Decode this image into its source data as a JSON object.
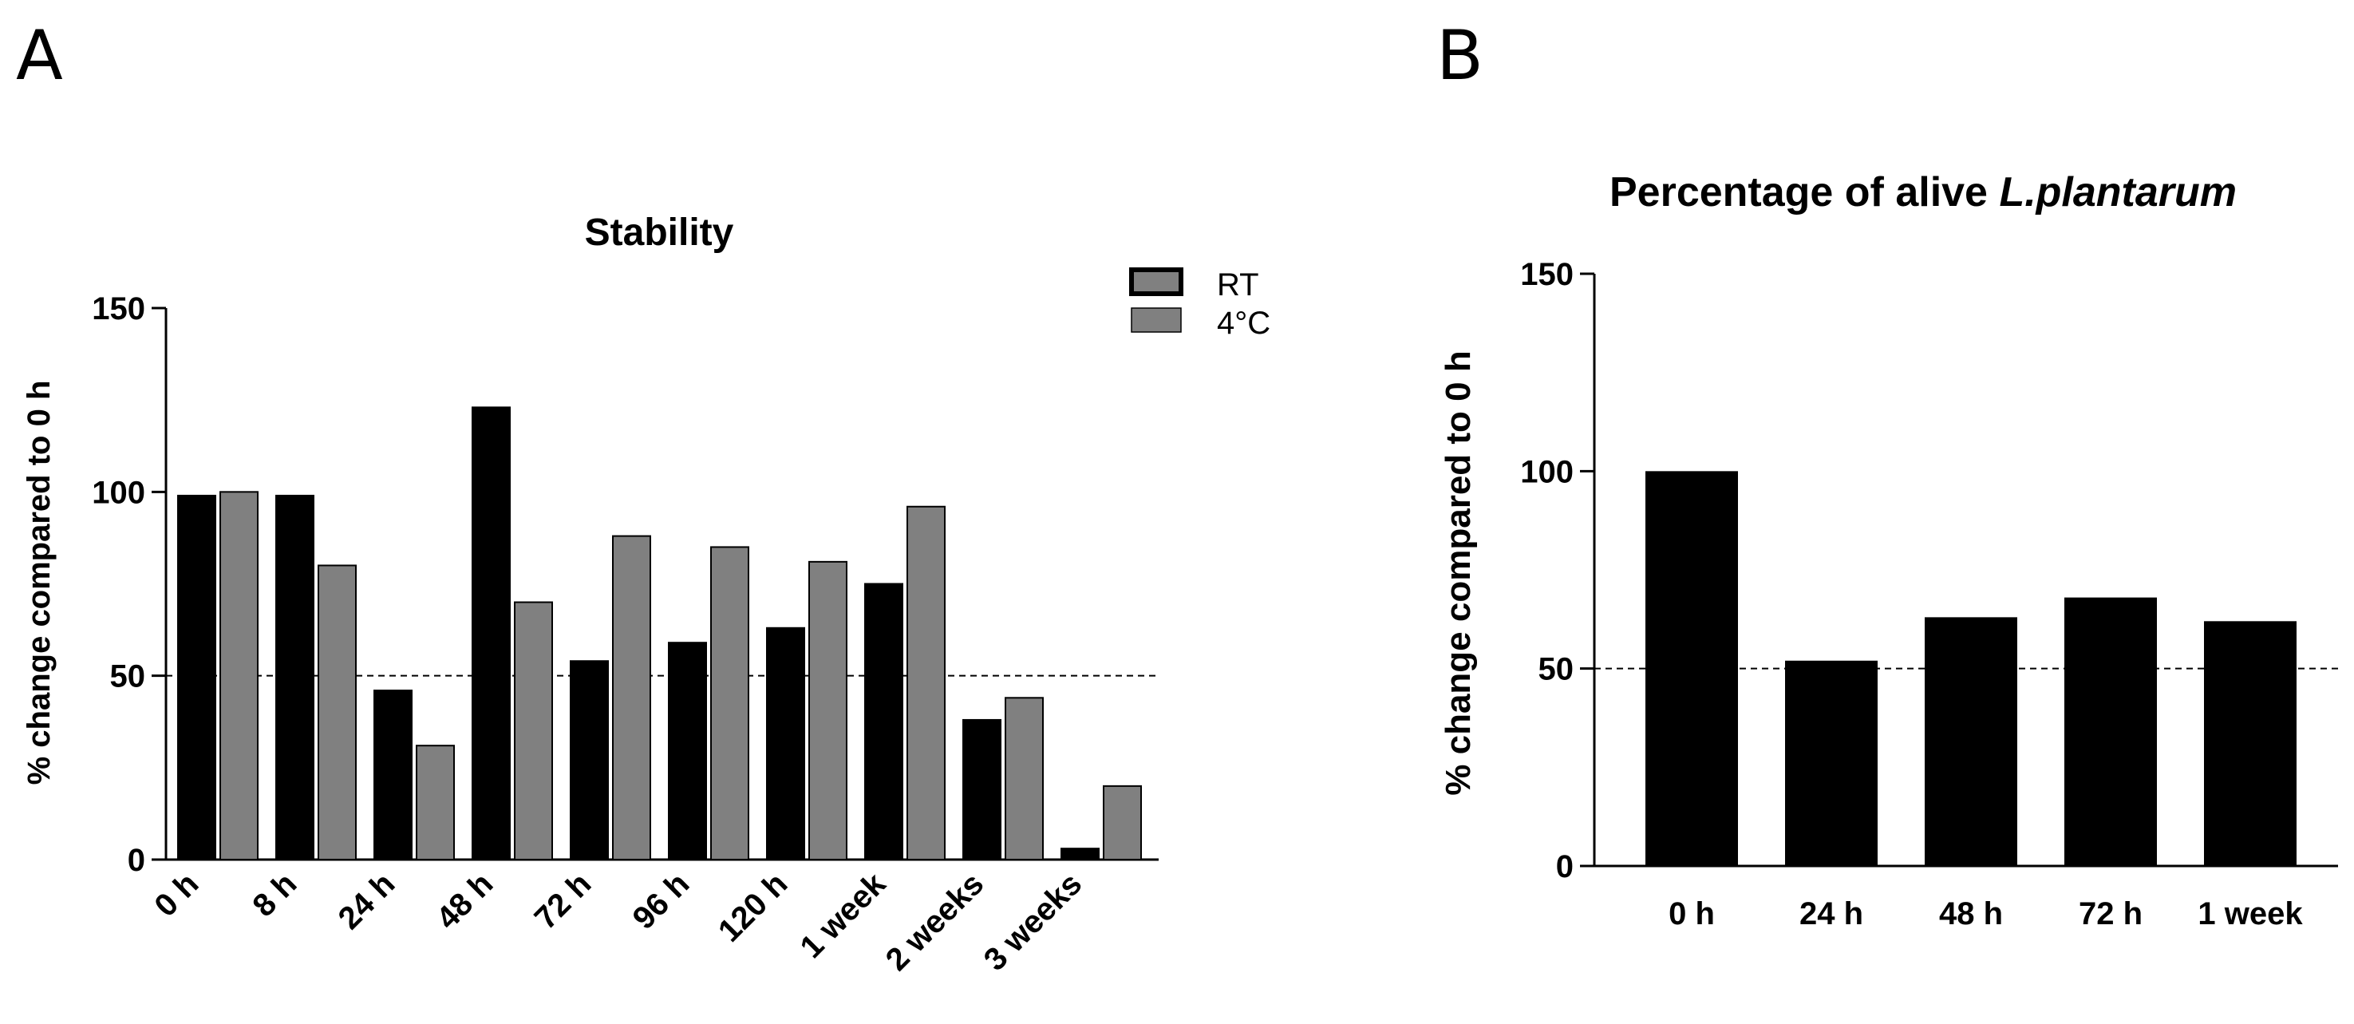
{
  "panels": {
    "a_label": "A",
    "b_label": "B"
  },
  "colors": {
    "rt": "#000000",
    "cold": "#808080",
    "axis": "#000000"
  },
  "chart_data": [
    {
      "type": "bar",
      "title": "Stability",
      "xlabel": "",
      "ylabel": "% change compared to 0 h",
      "ylim": [
        0,
        150
      ],
      "yticks": [
        "0",
        "50",
        "100",
        "150"
      ],
      "reference_line": 50,
      "categories": [
        "0 h",
        "8 h",
        "24 h",
        "48 h",
        "72 h",
        "96 h",
        "120 h",
        "1 week",
        "2 weeks",
        "3 weeks"
      ],
      "legend": {
        "position": "top-right",
        "entries": [
          "RT",
          "4°C"
        ]
      },
      "series": [
        {
          "name": "RT",
          "values": [
            99,
            99,
            46,
            123,
            54,
            59,
            63,
            75,
            38,
            3
          ]
        },
        {
          "name": "4°C",
          "values": [
            100,
            80,
            31,
            70,
            88,
            85,
            81,
            96,
            44,
            20
          ]
        }
      ]
    },
    {
      "type": "bar",
      "title_prefix": "Percentage of alive ",
      "title_italic": "L.plantarum",
      "xlabel": "",
      "ylabel": "% change compared to 0 h",
      "ylim": [
        0,
        150
      ],
      "yticks": [
        "0",
        "50",
        "100",
        "150"
      ],
      "reference_line": 50,
      "categories": [
        "0 h",
        "24 h",
        "48 h",
        "72 h",
        "1 week"
      ],
      "series": [
        {
          "name": "alive",
          "values": [
            100,
            52,
            63,
            68,
            62
          ]
        }
      ]
    }
  ]
}
